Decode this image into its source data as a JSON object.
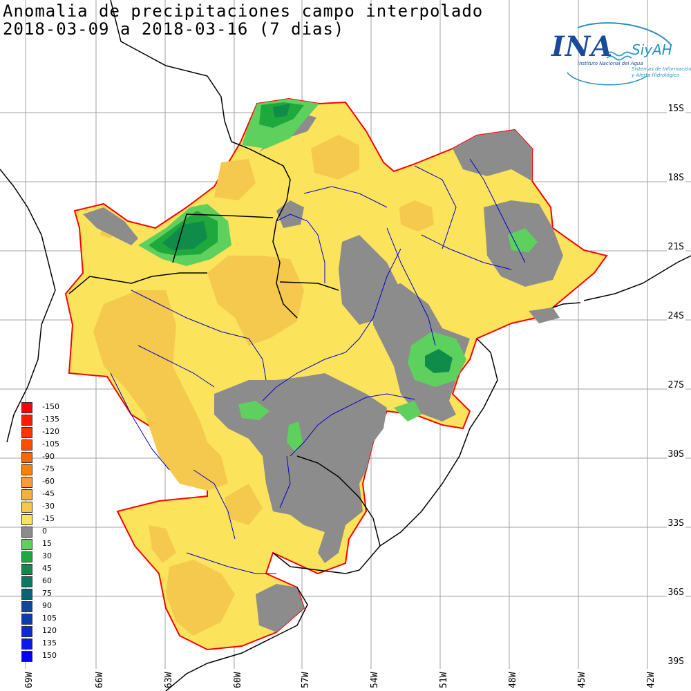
{
  "title": {
    "line1": "Anomalia de precipitaciones campo interpolado",
    "line2": "2018-03-09 a 2018-03-16 (7 dias)"
  },
  "lat_labels": [
    "15S",
    "18S",
    "21S",
    "24S",
    "27S",
    "30S",
    "33S",
    "36S",
    "39S"
  ],
  "lon_labels": [
    "69W",
    "66W",
    "63W",
    "60W",
    "57W",
    "54W",
    "51W",
    "48W",
    "45W",
    "42W"
  ],
  "legend": [
    {
      "label": "-150",
      "color": "#ff0000"
    },
    {
      "label": "-135",
      "color": "#ff1a00"
    },
    {
      "label": "-120",
      "color": "#ff3300"
    },
    {
      "label": "-105",
      "color": "#ff4c00"
    },
    {
      "label": "-90",
      "color": "#ff6600"
    },
    {
      "label": "-75",
      "color": "#ff8000"
    },
    {
      "label": "-60",
      "color": "#ff9933"
    },
    {
      "label": "-45",
      "color": "#f5b042"
    },
    {
      "label": "-30",
      "color": "#f5c94e"
    },
    {
      "label": "-15",
      "color": "#fbe35c"
    },
    {
      "label": "0",
      "color": "#8c8c8c"
    },
    {
      "label": "15",
      "color": "#5ed05e"
    },
    {
      "label": "30",
      "color": "#1fa83c"
    },
    {
      "label": "45",
      "color": "#0f8c4a"
    },
    {
      "label": "60",
      "color": "#0a7a62"
    },
    {
      "label": "75",
      "color": "#086478"
    },
    {
      "label": "90",
      "color": "#0a4a96"
    },
    {
      "label": "105",
      "color": "#0a3ab4"
    },
    {
      "label": "120",
      "color": "#0a2ad2"
    },
    {
      "label": "135",
      "color": "#0a1aec"
    },
    {
      "label": "150",
      "color": "#0000ff"
    }
  ],
  "logo": {
    "name": "INA",
    "brand": "SiyAH",
    "subtitle": "Instituto Nacional del Agua",
    "tagline_1": "Sistemas de Información",
    "tagline_2": "y Alerta Hidrológico"
  },
  "colors": {
    "outline": "#ff0000",
    "river": "#0000cc",
    "border": "#000000",
    "grid": "#a0a0a0"
  }
}
